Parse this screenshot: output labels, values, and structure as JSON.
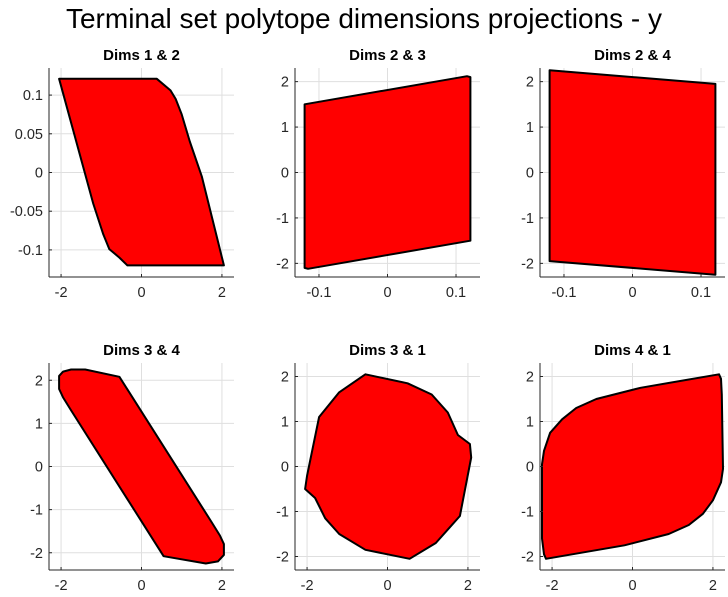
{
  "figure": {
    "title": "Terminal set polytope dimensions projections - y"
  },
  "colors": {
    "fill": "#ff0000",
    "edge": "#000000",
    "grid": "#dfdfdf",
    "axis": "#262626"
  },
  "chart_data": [
    {
      "type": "area",
      "title": "Dims 1 & 2",
      "xlabel": "",
      "ylabel": "",
      "xlim": [
        -2.3,
        2.3
      ],
      "ylim": [
        -0.135,
        0.135
      ],
      "xticks": [
        -2,
        0,
        2
      ],
      "xtick_labels": [
        "-2",
        "0",
        "2"
      ],
      "yticks": [
        -0.1,
        -0.05,
        0,
        0.05,
        0.1
      ],
      "ytick_labels": [
        "-0.1",
        "-0.05",
        "0",
        "0.05",
        "0.1"
      ],
      "grid": true,
      "polygon": {
        "x": [
          -2.05,
          0.38,
          0.72,
          0.85,
          1.0,
          1.2,
          1.5,
          2.05,
          -0.35,
          -0.55,
          -0.8,
          -0.95,
          -1.2,
          -2.05
        ],
        "y": [
          0.121,
          0.121,
          0.106,
          0.095,
          0.075,
          0.04,
          -0.005,
          -0.12,
          -0.12,
          -0.11,
          -0.099,
          -0.08,
          -0.04,
          0.121
        ]
      }
    },
    {
      "type": "area",
      "title": "Dims 2 & 3",
      "xlabel": "",
      "ylabel": "",
      "xlim": [
        -0.135,
        0.135
      ],
      "ylim": [
        -2.3,
        2.3
      ],
      "xticks": [
        -0.1,
        0,
        0.1
      ],
      "xtick_labels": [
        "-0.1",
        "0",
        "0.1"
      ],
      "yticks": [
        -2,
        -1,
        0,
        1,
        2
      ],
      "ytick_labels": [
        "-2",
        "-1",
        "0",
        "1",
        "2"
      ],
      "grid": true,
      "polygon": {
        "x": [
          -0.121,
          0.116,
          0.121,
          0.121,
          -0.116,
          -0.121,
          -0.121
        ],
        "y": [
          1.5,
          2.12,
          2.1,
          -1.5,
          -2.12,
          -2.1,
          1.5
        ]
      }
    },
    {
      "type": "area",
      "title": "Dims 2 & 4",
      "xlabel": "",
      "ylabel": "",
      "xlim": [
        -0.135,
        0.135
      ],
      "ylim": [
        -2.3,
        2.3
      ],
      "xticks": [
        -0.1,
        0,
        0.1
      ],
      "xtick_labels": [
        "-0.1",
        "0",
        "0.1"
      ],
      "yticks": [
        -2,
        -1,
        0,
        1,
        2
      ],
      "ytick_labels": [
        "-2",
        "-1",
        "0",
        "1",
        "2"
      ],
      "grid": true,
      "polygon": {
        "x": [
          -0.121,
          0.121,
          0.121,
          -0.121,
          -0.121
        ],
        "y": [
          2.25,
          1.95,
          -2.25,
          -1.95,
          2.25
        ]
      }
    },
    {
      "type": "area",
      "title": "Dims 3 & 4",
      "xlabel": "",
      "ylabel": "",
      "xlim": [
        -2.3,
        2.3
      ],
      "ylim": [
        -2.4,
        2.4
      ],
      "xticks": [
        -2,
        0,
        2
      ],
      "xtick_labels": [
        "-2",
        "0",
        "2"
      ],
      "yticks": [
        -2,
        -1,
        0,
        1,
        2
      ],
      "ytick_labels": [
        "-2",
        "-1",
        "0",
        "1",
        "2"
      ],
      "grid": true,
      "polygon": {
        "x": [
          -2.05,
          -1.95,
          -1.75,
          -1.4,
          -0.55,
          1.75,
          1.95,
          2.05,
          2.05,
          1.9,
          1.6,
          0.55,
          -1.75,
          -1.95,
          -2.05,
          -2.05
        ],
        "y": [
          2.1,
          2.2,
          2.25,
          2.25,
          2.08,
          -1.3,
          -1.6,
          -1.8,
          -2.05,
          -2.2,
          -2.25,
          -2.08,
          1.3,
          1.6,
          1.8,
          2.1
        ]
      }
    },
    {
      "type": "area",
      "title": "Dims 3 & 1",
      "xlabel": "",
      "ylabel": "",
      "xlim": [
        -2.3,
        2.3
      ],
      "ylim": [
        -2.3,
        2.3
      ],
      "xticks": [
        -2,
        0,
        2
      ],
      "xtick_labels": [
        "-2",
        "0",
        "2"
      ],
      "yticks": [
        -2,
        -1,
        0,
        1,
        2
      ],
      "ytick_labels": [
        "-2",
        "-1",
        "0",
        "1",
        "2"
      ],
      "grid": true,
      "polygon": {
        "x": [
          -0.55,
          0.5,
          1.1,
          1.5,
          1.75,
          2.05,
          2.08,
          1.8,
          1.55,
          1.2,
          0.55,
          -0.55,
          -1.2,
          -1.55,
          -1.8,
          -2.05,
          -2.0,
          -1.7,
          -1.2,
          -0.55
        ],
        "y": [
          2.05,
          1.85,
          1.6,
          1.2,
          0.7,
          0.5,
          0.2,
          -1.1,
          -1.35,
          -1.7,
          -2.05,
          -1.85,
          -1.5,
          -1.15,
          -0.7,
          -0.5,
          -0.2,
          1.1,
          1.65,
          2.05
        ]
      }
    },
    {
      "type": "area",
      "title": "Dims 4 & 1",
      "xlabel": "",
      "ylabel": "",
      "xlim": [
        -2.3,
        2.3
      ],
      "ylim": [
        -2.3,
        2.3
      ],
      "xticks": [
        -2,
        0,
        2
      ],
      "xtick_labels": [
        "-2",
        "0",
        "2"
      ],
      "yticks": [
        -2,
        -1,
        0,
        1,
        2
      ],
      "ytick_labels": [
        "-2",
        "-1",
        "0",
        "1",
        "2"
      ],
      "grid": true,
      "polygon": {
        "x": [
          2.15,
          2.2,
          2.22,
          2.25,
          2.2,
          2.0,
          1.75,
          1.4,
          0.9,
          -0.2,
          -2.15,
          -2.2,
          -2.25,
          -2.25,
          -2.2,
          -2.05,
          -1.75,
          -1.4,
          -0.9,
          0.2,
          2.15
        ],
        "y": [
          2.05,
          1.95,
          1.6,
          -0.05,
          -0.35,
          -0.75,
          -1.05,
          -1.3,
          -1.5,
          -1.75,
          -2.05,
          -1.95,
          -1.6,
          0.05,
          0.35,
          0.75,
          1.05,
          1.3,
          1.5,
          1.75,
          2.05
        ]
      }
    }
  ]
}
